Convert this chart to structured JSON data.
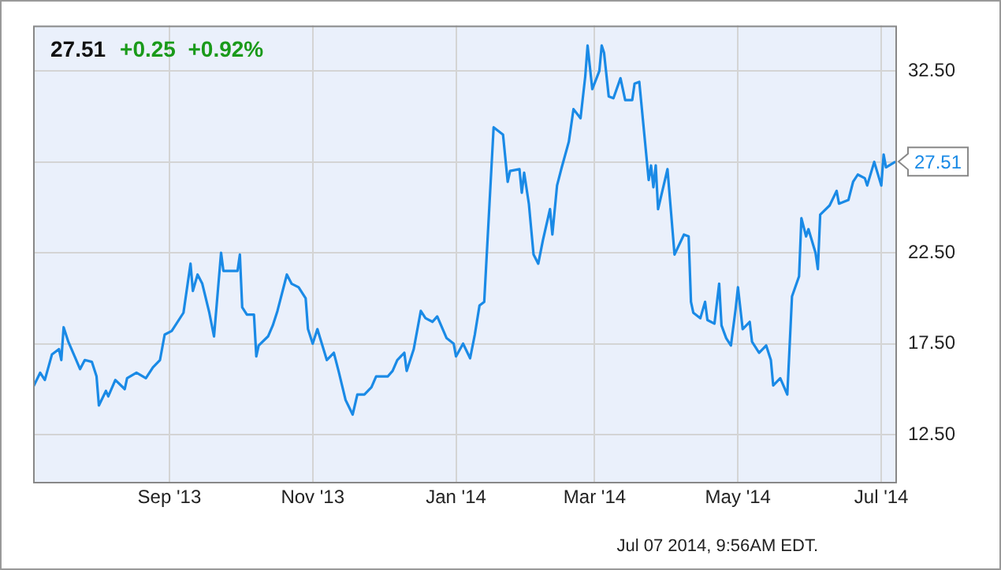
{
  "chart_data": {
    "type": "line",
    "title": "27.51",
    "subtitle": "+0.25  +0.92%",
    "xlim": [
      "2013-07-05",
      "2014-07-07"
    ],
    "xticks": [
      {
        "value": "2013-09-01",
        "label": "Sep '13"
      },
      {
        "value": "2013-11-01",
        "label": "Nov '13"
      },
      {
        "value": "2014-01-01",
        "label": "Jan '14"
      },
      {
        "value": "2014-03-01",
        "label": "Mar '14"
      },
      {
        "value": "2014-05-01",
        "label": "May '14"
      },
      {
        "value": "2014-07-01",
        "label": "Jul '14"
      }
    ],
    "ylim": [
      9.9,
      35
    ],
    "yticks": [
      {
        "value": 12.5,
        "label": "12.50"
      },
      {
        "value": 17.5,
        "label": "17.50"
      },
      {
        "value": 22.5,
        "label": "22.50"
      },
      {
        "value": 27.5,
        "label": null
      },
      {
        "value": 32.5,
        "label": "32.50"
      }
    ],
    "grid": true,
    "marker": "none",
    "line_style": "solid",
    "annotations": [
      {
        "text": "27.51",
        "x": "2014-07-07",
        "y": 27.51
      },
      "Jul 07 2014, 9:56AM EDT."
    ],
    "series": [
      {
        "color": "#1a8ae6",
        "x": [
          "2013-07-05",
          "2013-07-08",
          "2013-07-10",
          "2013-07-13",
          "2013-07-16",
          "2013-07-17",
          "2013-07-18",
          "2013-07-20",
          "2013-07-23",
          "2013-07-25",
          "2013-07-27",
          "2013-07-30",
          "2013-08-01",
          "2013-08-02",
          "2013-08-05",
          "2013-08-06",
          "2013-08-09",
          "2013-08-13",
          "2013-08-14",
          "2013-08-18",
          "2013-08-22",
          "2013-08-25",
          "2013-08-28",
          "2013-08-30",
          "2013-09-02",
          "2013-09-07",
          "2013-09-10",
          "2013-09-11",
          "2013-09-13",
          "2013-09-15",
          "2013-09-18",
          "2013-09-20",
          "2013-09-23",
          "2013-09-24",
          "2013-09-26",
          "2013-09-30",
          "2013-10-01",
          "2013-10-02",
          "2013-10-04",
          "2013-10-07",
          "2013-10-08",
          "2013-10-09",
          "2013-10-13",
          "2013-10-15",
          "2013-10-17",
          "2013-10-21",
          "2013-10-23",
          "2013-10-26",
          "2013-10-29",
          "2013-10-30",
          "2013-11-01",
          "2013-11-03",
          "2013-11-07",
          "2013-11-10",
          "2013-11-12",
          "2013-11-15",
          "2013-11-18",
          "2013-11-20",
          "2013-11-23",
          "2013-11-26",
          "2013-11-28",
          "2013-12-03",
          "2013-12-05",
          "2013-12-07",
          "2013-12-10",
          "2013-12-11",
          "2013-12-14",
          "2013-12-17",
          "2013-12-19",
          "2013-12-22",
          "2013-12-24",
          "2013-12-28",
          "2013-12-31",
          "2014-01-01",
          "2014-01-04",
          "2014-01-07",
          "2014-01-09",
          "2014-01-11",
          "2014-01-13",
          "2014-01-17",
          "2014-01-21",
          "2014-01-23",
          "2014-01-24",
          "2014-01-28",
          "2014-01-29",
          "2014-01-30",
          "2014-02-01",
          "2014-02-03",
          "2014-02-05",
          "2014-02-07",
          "2014-02-10",
          "2014-02-11",
          "2014-02-13",
          "2014-02-15",
          "2014-02-18",
          "2014-02-20",
          "2014-02-23",
          "2014-02-25",
          "2014-02-26",
          "2014-02-28",
          "2014-03-03",
          "2014-03-04",
          "2014-03-05",
          "2014-03-07",
          "2014-03-09",
          "2014-03-12",
          "2014-03-14",
          "2014-03-17",
          "2014-03-18",
          "2014-03-20",
          "2014-03-24",
          "2014-03-25",
          "2014-03-26",
          "2014-03-27",
          "2014-03-28",
          "2014-04-01",
          "2014-04-04",
          "2014-04-08",
          "2014-04-10",
          "2014-04-11",
          "2014-04-12",
          "2014-04-15",
          "2014-04-17",
          "2014-04-18",
          "2014-04-21",
          "2014-04-23",
          "2014-04-24",
          "2014-04-26",
          "2014-04-28",
          "2014-04-30",
          "2014-05-01",
          "2014-05-03",
          "2014-05-06",
          "2014-05-07",
          "2014-05-10",
          "2014-05-13",
          "2014-05-15",
          "2014-05-16",
          "2014-05-19",
          "2014-05-22",
          "2014-05-24",
          "2014-05-27",
          "2014-05-28",
          "2014-05-30",
          "2014-05-31",
          "2014-06-03",
          "2014-06-04",
          "2014-06-05",
          "2014-06-09",
          "2014-06-12",
          "2014-06-13",
          "2014-06-17",
          "2014-06-19",
          "2014-06-21",
          "2014-06-24",
          "2014-06-25",
          "2014-06-28",
          "2014-07-01",
          "2014-07-02",
          "2014-07-03",
          "2014-07-07"
        ],
        "values": [
          15.1,
          15.9,
          15.5,
          16.9,
          17.2,
          16.6,
          18.4,
          17.6,
          16.7,
          16.1,
          16.6,
          16.5,
          15.7,
          14.1,
          14.9,
          14.6,
          15.5,
          15.0,
          15.6,
          15.9,
          15.6,
          16.2,
          16.6,
          18.0,
          18.2,
          19.2,
          21.9,
          20.4,
          21.3,
          20.8,
          19.2,
          17.9,
          22.5,
          21.5,
          21.5,
          21.5,
          22.4,
          19.5,
          19.1,
          19.1,
          16.8,
          17.4,
          17.9,
          18.5,
          19.3,
          21.3,
          20.8,
          20.6,
          20.0,
          18.3,
          17.5,
          18.3,
          16.6,
          17.0,
          16.0,
          14.4,
          13.6,
          14.7,
          14.7,
          15.1,
          15.7,
          15.7,
          16.0,
          16.6,
          17.0,
          16.0,
          17.2,
          19.3,
          18.9,
          18.7,
          19.0,
          17.8,
          17.5,
          16.8,
          17.5,
          16.7,
          18.0,
          19.6,
          19.8,
          29.4,
          29.0,
          26.4,
          27.0,
          27.1,
          25.8,
          26.9,
          25.2,
          22.4,
          21.9,
          23.2,
          24.9,
          23.5,
          26.2,
          27.2,
          28.6,
          30.4,
          29.9,
          32.2,
          33.9,
          31.5,
          32.5,
          33.9,
          33.5,
          31.1,
          31.0,
          32.1,
          30.9,
          30.9,
          31.8,
          31.9,
          26.5,
          27.3,
          26.1,
          27.3,
          24.9,
          27.1,
          22.4,
          23.5,
          23.4,
          19.8,
          19.2,
          18.9,
          19.8,
          18.8,
          18.6,
          20.8,
          18.5,
          17.8,
          17.4,
          19.4,
          20.6,
          18.3,
          18.7,
          17.6,
          17.0,
          17.4,
          16.6,
          15.2,
          15.6,
          14.7,
          20.1,
          21.2,
          24.4,
          23.4,
          23.8,
          22.5,
          21.6,
          24.6,
          25.1,
          25.9,
          25.2,
          25.4,
          26.4,
          26.8,
          26.6,
          26.2,
          27.5,
          26.2,
          27.9,
          27.2,
          27.51
        ]
      }
    ]
  }
}
